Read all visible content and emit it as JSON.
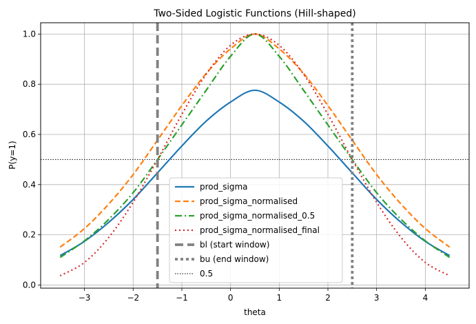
{
  "chart_data": {
    "type": "line",
    "title": "Two-Sided Logistic Functions (Hill-shaped)",
    "xlabel": "theta",
    "ylabel": "P(y=1)",
    "xlim": [
      -3.9,
      4.9
    ],
    "ylim": [
      -0.0125,
      1.045
    ],
    "xticks": [
      -3,
      -2,
      -1,
      0,
      1,
      2,
      3,
      4
    ],
    "xtick_labels": [
      "−3",
      "−2",
      "−1",
      "0",
      "1",
      "2",
      "3",
      "4"
    ],
    "yticks": [
      0.0,
      0.2,
      0.4,
      0.6,
      0.8,
      1.0
    ],
    "ytick_labels": [
      "0.0",
      "0.2",
      "0.4",
      "0.6",
      "0.8",
      "1.0"
    ],
    "grid": true,
    "legend_position": "lower-center",
    "x": [
      -3.5,
      -3.0,
      -2.5,
      -2.0,
      -1.5,
      -1.0,
      -0.5,
      0.0,
      0.5,
      1.0,
      1.5,
      2.0,
      2.5,
      3.0,
      3.5,
      4.0,
      4.5
    ],
    "series": [
      {
        "name": "prod_sigma",
        "color": "#1f77b4",
        "style": "solid",
        "values": [
          0.117,
          0.174,
          0.25,
          0.341,
          0.447,
          0.554,
          0.653,
          0.729,
          0.776,
          0.729,
          0.653,
          0.554,
          0.447,
          0.341,
          0.25,
          0.174,
          0.117
        ]
      },
      {
        "name": "prod_sigma_normalised",
        "color": "#ff7f0e",
        "style": "dashed",
        "values": [
          0.151,
          0.225,
          0.323,
          0.44,
          0.577,
          0.715,
          0.843,
          0.941,
          1.0,
          0.941,
          0.843,
          0.715,
          0.577,
          0.44,
          0.323,
          0.225,
          0.151
        ]
      },
      {
        "name": "prod_sigma_normalised_0.5",
        "color": "#2ca02c",
        "style": "dashdot",
        "values": [
          0.11,
          0.176,
          0.262,
          0.368,
          0.5,
          0.638,
          0.776,
          0.911,
          1.0,
          0.911,
          0.776,
          0.638,
          0.5,
          0.368,
          0.262,
          0.176,
          0.11
        ]
      },
      {
        "name": "prod_sigma_normalised_final",
        "color": "#d62728",
        "style": "dotted",
        "values": [
          0.037,
          0.09,
          0.19,
          0.33,
          0.5,
          0.68,
          0.84,
          0.955,
          1.0,
          0.955,
          0.84,
          0.68,
          0.5,
          0.33,
          0.19,
          0.09,
          0.037
        ]
      }
    ],
    "vlines": [
      {
        "name": "bl (start window)",
        "x": -1.5,
        "color": "#808080",
        "style": "dashed-thick"
      },
      {
        "name": "bu (end window)",
        "x": 2.5,
        "color": "#808080",
        "style": "dotted-thick"
      }
    ],
    "hlines": [
      {
        "name": "0.5",
        "y": 0.5,
        "color": "#000000",
        "style": "dotted-thin"
      }
    ]
  }
}
